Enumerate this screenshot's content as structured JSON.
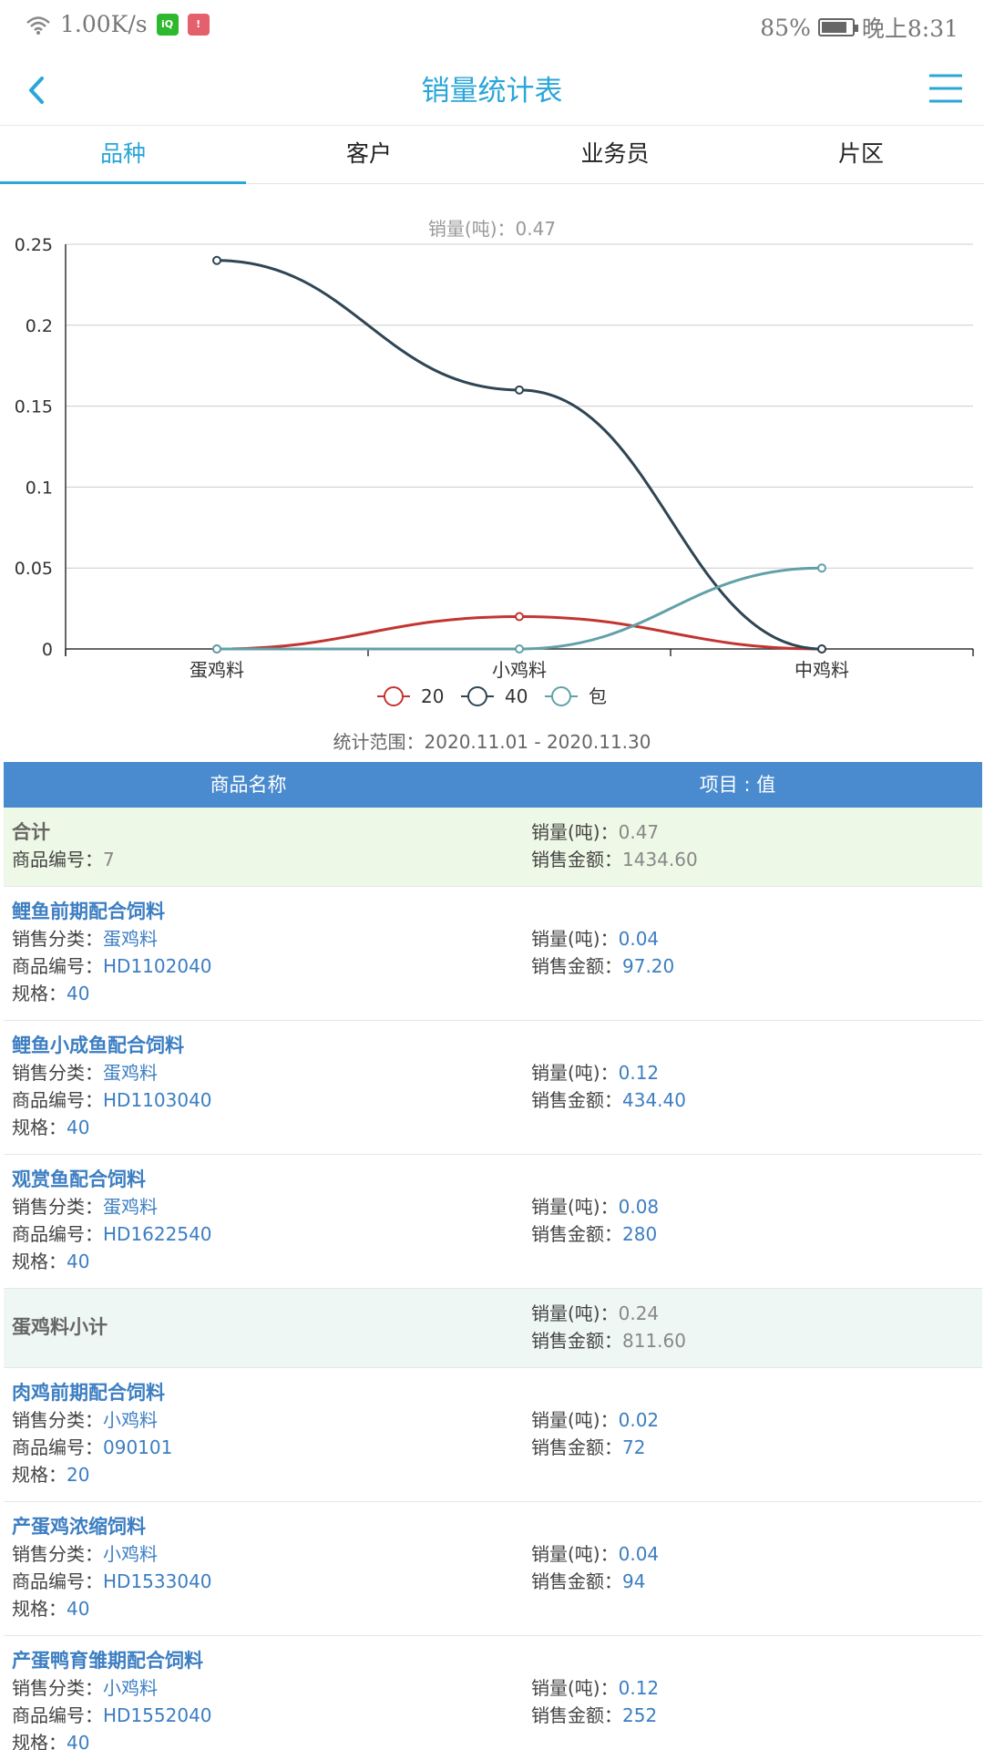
{
  "status": {
    "speed": "1.00K/s",
    "battery_text": "85%",
    "time": "晚上8:31",
    "battery_level": 0.85
  },
  "header": {
    "title": "销量统计表",
    "back_icon": "chevron-left-icon",
    "menu_icon": "hamburger-menu-icon"
  },
  "tabs": [
    {
      "label": "品种",
      "active": true
    },
    {
      "label": "客户",
      "active": false
    },
    {
      "label": "业务员",
      "active": false
    },
    {
      "label": "片区",
      "active": false
    }
  ],
  "chart_data": {
    "type": "line",
    "title": "销量(吨)：0.47",
    "categories": [
      "蛋鸡料",
      "小鸡料",
      "中鸡料"
    ],
    "ylim": [
      0,
      0.25
    ],
    "yticks": [
      "0",
      "0.05",
      "0.1",
      "0.15",
      "0.2",
      "0.25"
    ],
    "grid": true,
    "legend_position": "bottom",
    "series": [
      {
        "name": "20",
        "values": [
          0,
          0.02,
          0
        ],
        "color": "#c23531"
      },
      {
        "name": "40",
        "values": [
          0.24,
          0.16,
          0
        ],
        "color": "#2f4554"
      },
      {
        "name": "包",
        "values": [
          0,
          0,
          0.05
        ],
        "color": "#61a0a8"
      }
    ]
  },
  "range_text": "统计范围：2020.11.01 - 2020.11.30",
  "table": {
    "header": [
      "商品名称",
      "项目 : 值"
    ],
    "total": {
      "name": "合计",
      "code_label": "商品编号：",
      "code": "7",
      "qty_label": "销量(吨)：",
      "qty": "0.47",
      "amt_label": "销售金额：",
      "amt": "1434.60"
    },
    "labels": {
      "cat": "销售分类：",
      "code": "商品编号：",
      "spec": "规格：",
      "qty": "销量(吨)：",
      "amt": "销售金额："
    },
    "group1": [
      {
        "name": "鲤鱼前期配合饲料",
        "cat": "蛋鸡料",
        "code": "HD1102040",
        "spec": "40",
        "qty": "0.04",
        "amt": "97.20"
      },
      {
        "name": "鲤鱼小成鱼配合饲料",
        "cat": "蛋鸡料",
        "code": "HD1103040",
        "spec": "40",
        "qty": "0.12",
        "amt": "434.40"
      },
      {
        "name": "观赏鱼配合饲料",
        "cat": "蛋鸡料",
        "code": "HD1622540",
        "spec": "40",
        "qty": "0.08",
        "amt": "280"
      }
    ],
    "subtotal1": {
      "name": "蛋鸡料小计",
      "qty": "0.24",
      "amt": "811.60"
    },
    "group2": [
      {
        "name": "肉鸡前期配合饲料",
        "cat": "小鸡料",
        "code": "090101",
        "spec": "20",
        "qty": "0.02",
        "amt": "72"
      },
      {
        "name": "产蛋鸡浓缩饲料",
        "cat": "小鸡料",
        "code": "HD1533040",
        "spec": "40",
        "qty": "0.04",
        "amt": "94"
      },
      {
        "name": "产蛋鸭育雏期配合饲料",
        "cat": "小鸡料",
        "code": "HD1552040",
        "spec": "40",
        "qty": "0.12",
        "amt": "252"
      }
    ]
  }
}
